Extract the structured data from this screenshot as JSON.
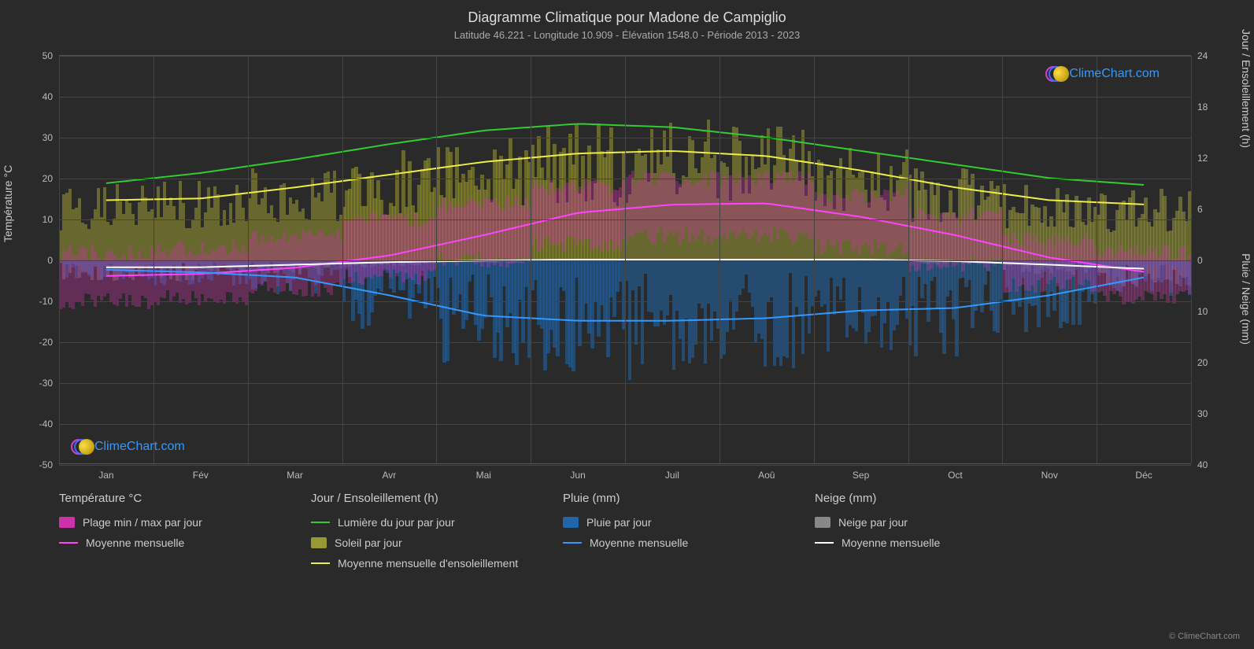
{
  "title": "Diagramme Climatique pour Madone de Campiglio",
  "subtitle": "Latitude 46.221 - Longitude 10.909 - Élévation 1548.0 - Période 2013 - 2023",
  "credit": "© ClimeChart.com",
  "watermark_text": "ClimeChart.com",
  "colors": {
    "background": "#2a2a2a",
    "grid": "#444444",
    "text": "#cccccc",
    "daylight_line": "#33cc33",
    "sunshine_line": "#eeee44",
    "sunshine_bars": "#999933",
    "temp_line": "#ff44ff",
    "temp_range": "#cc33aa",
    "temp_avg_line": "#ffffff",
    "rain_line": "#3399ff",
    "rain_bars": "#2266aa",
    "snow_line": "#ffffff",
    "snow_bars": "#888888"
  },
  "axes": {
    "left_label": "Température °C",
    "right_label_top": "Jour / Ensoleillement (h)",
    "right_label_bottom": "Pluie / Neige (mm)",
    "temp_range": [
      -50,
      50
    ],
    "temp_ticks": [
      50,
      40,
      30,
      20,
      10,
      0,
      -10,
      -20,
      -30,
      -40,
      -50
    ],
    "sun_range": [
      0,
      24
    ],
    "sun_ticks": [
      24,
      18,
      12,
      6,
      0
    ],
    "precip_range": [
      0,
      40
    ],
    "precip_ticks": [
      0,
      10,
      20,
      30,
      40
    ],
    "months": [
      "Jan",
      "Fév",
      "Mar",
      "Avr",
      "Mai",
      "Jun",
      "Juil",
      "Aoû",
      "Sep",
      "Oct",
      "Nov",
      "Déc"
    ]
  },
  "series": {
    "daylight_hours": [
      9.0,
      10.2,
      11.8,
      13.6,
      15.2,
      16.0,
      15.6,
      14.4,
      12.8,
      11.2,
      9.6,
      8.8
    ],
    "sunshine_avg_hours": [
      7.0,
      7.2,
      8.5,
      10.0,
      11.5,
      12.5,
      12.8,
      12.2,
      10.5,
      8.5,
      7.0,
      6.5
    ],
    "temp_avg_c": [
      -4.0,
      -3.5,
      -2.0,
      1.0,
      6.0,
      11.5,
      13.5,
      13.8,
      10.5,
      6.0,
      0.5,
      -3.0
    ],
    "temp_max_c": [
      2.0,
      3.0,
      6.0,
      10.0,
      14.0,
      18.0,
      20.0,
      20.0,
      16.0,
      11.0,
      5.0,
      2.0
    ],
    "temp_min_c": [
      -10.0,
      -9.0,
      -7.0,
      -4.0,
      0.0,
      4.0,
      6.0,
      6.0,
      3.0,
      -1.0,
      -6.0,
      -9.0
    ],
    "rain_avg_mm": [
      2.0,
      2.5,
      3.5,
      7.0,
      11.0,
      12.0,
      12.0,
      11.5,
      10.0,
      9.5,
      7.0,
      3.5
    ],
    "snow_avg_mm": [
      1.5,
      1.5,
      1.0,
      0.5,
      0.2,
      0.0,
      0.0,
      0.0,
      0.0,
      0.3,
      1.0,
      1.8
    ]
  },
  "legend": {
    "groups": [
      {
        "title": "Température °C",
        "items": [
          {
            "type": "box",
            "color": "#cc33aa",
            "label": "Plage min / max par jour"
          },
          {
            "type": "line",
            "color": "#ff44ff",
            "label": "Moyenne mensuelle"
          }
        ]
      },
      {
        "title": "Jour / Ensoleillement (h)",
        "items": [
          {
            "type": "line",
            "color": "#33cc33",
            "label": "Lumière du jour par jour"
          },
          {
            "type": "box",
            "color": "#999933",
            "label": "Soleil par jour"
          },
          {
            "type": "line",
            "color": "#eeee44",
            "label": "Moyenne mensuelle d'ensoleillement"
          }
        ]
      },
      {
        "title": "Pluie (mm)",
        "items": [
          {
            "type": "box",
            "color": "#2266aa",
            "label": "Pluie par jour"
          },
          {
            "type": "line",
            "color": "#3399ff",
            "label": "Moyenne mensuelle"
          }
        ]
      },
      {
        "title": "Neige (mm)",
        "items": [
          {
            "type": "box",
            "color": "#888888",
            "label": "Neige par jour"
          },
          {
            "type": "line",
            "color": "#ffffff",
            "label": "Moyenne mensuelle"
          }
        ]
      }
    ]
  }
}
